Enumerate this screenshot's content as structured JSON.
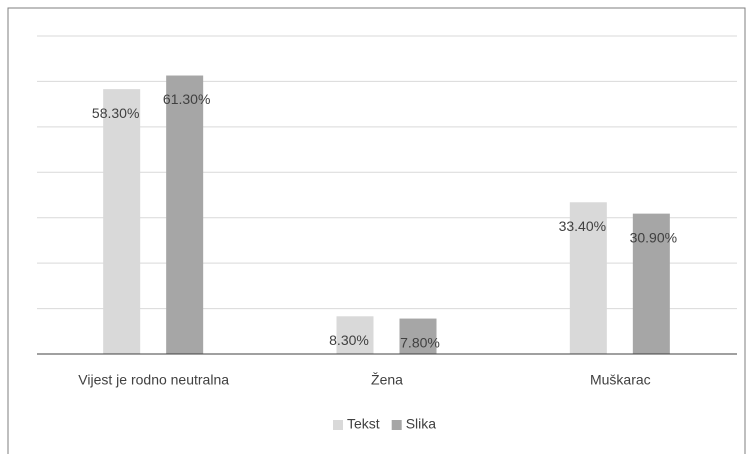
{
  "chart_data": {
    "type": "bar",
    "categories": [
      "Vijest je rodno neutralna",
      "Žena",
      "Muškarac"
    ],
    "series": [
      {
        "name": "Tekst",
        "color": "#d9d9d9",
        "values": [
          58.3,
          8.3,
          33.4
        ],
        "value_labels": [
          "58.30%",
          "8.30%",
          "33.40%"
        ]
      },
      {
        "name": "Slika",
        "color": "#a6a6a6",
        "values": [
          61.3,
          7.8,
          30.9
        ],
        "value_labels": [
          "61.30%",
          "7.80%",
          "30.90%"
        ]
      }
    ],
    "ylim": [
      0,
      70
    ],
    "yticks": [
      0,
      10,
      20,
      30,
      40,
      50,
      60,
      70
    ],
    "grid": true,
    "legend": "bottom"
  }
}
